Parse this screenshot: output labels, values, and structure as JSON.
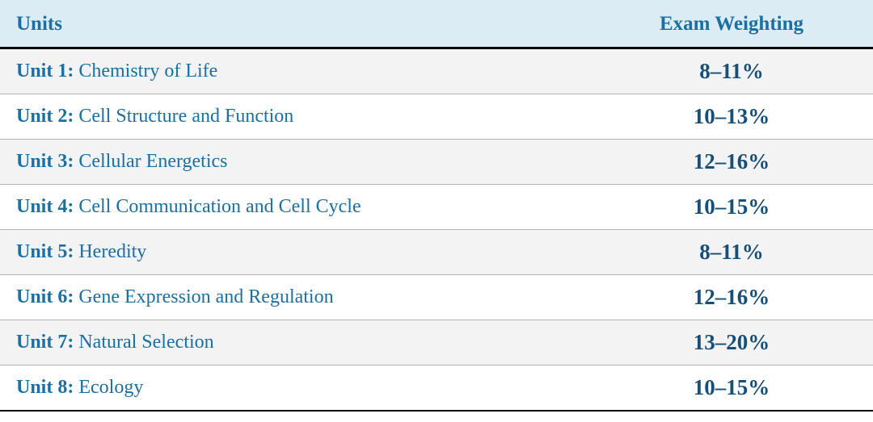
{
  "colors": {
    "header_bg": "#dcecf5",
    "header_text": "#1a6fa3",
    "row_odd_bg": "#f3f3f3",
    "row_even_bg": "#ffffff",
    "unit_text": "#1a6fa3",
    "weight_text": "#174f78",
    "header_border": "#000000",
    "row_border": "#b5b5b5",
    "bottom_border": "#000000"
  },
  "table": {
    "columns": {
      "units": "Units",
      "weighting": "Exam Weighting"
    },
    "rows": [
      {
        "unit_label": "Unit 1:",
        "unit_title": "Chemistry of Life",
        "weight": "8–11%"
      },
      {
        "unit_label": "Unit 2:",
        "unit_title": "Cell Structure and Function",
        "weight": "10–13%"
      },
      {
        "unit_label": "Unit 3:",
        "unit_title": "Cellular Energetics",
        "weight": "12–16%"
      },
      {
        "unit_label": "Unit 4:",
        "unit_title": "Cell Communication and Cell Cycle",
        "weight": "10–15%"
      },
      {
        "unit_label": "Unit 5:",
        "unit_title": "Heredity",
        "weight": "8–11%"
      },
      {
        "unit_label": "Unit 6:",
        "unit_title": "Gene Expression and Regulation",
        "weight": "12–16%"
      },
      {
        "unit_label": "Unit 7:",
        "unit_title": "Natural Selection",
        "weight": "13–20%"
      },
      {
        "unit_label": "Unit 8:",
        "unit_title": "Ecology",
        "weight": "10–15%"
      }
    ]
  }
}
